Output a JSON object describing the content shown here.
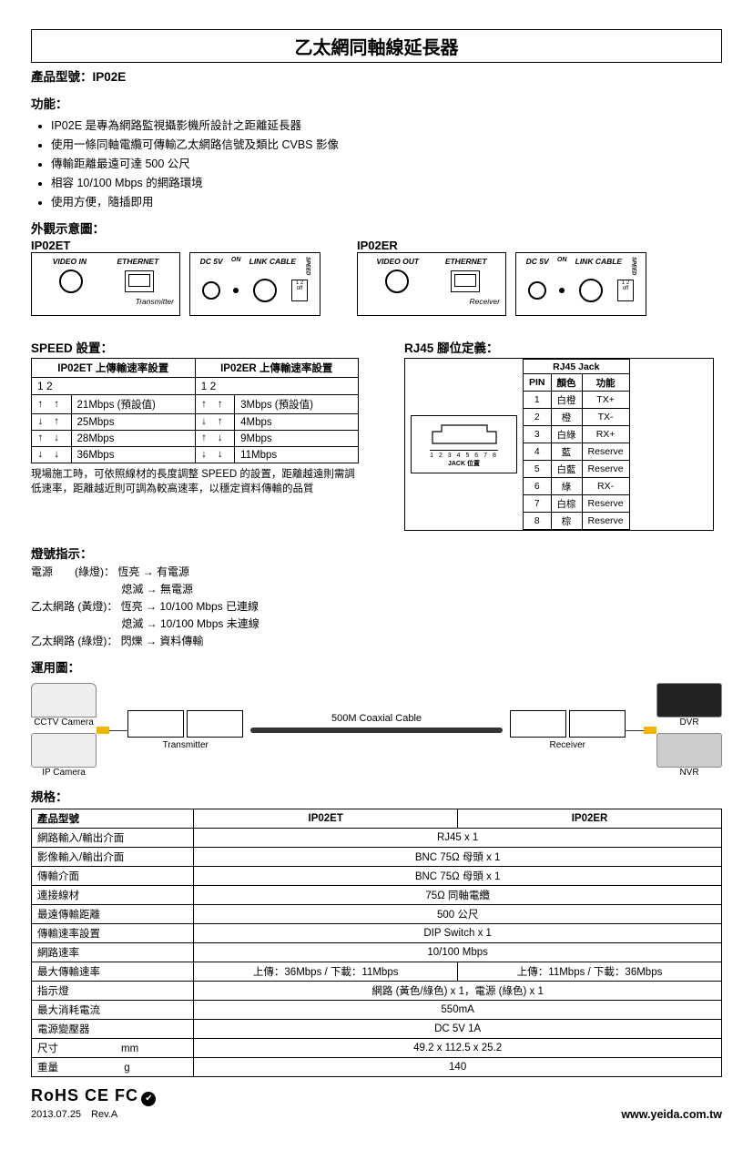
{
  "title": "乙太網同軸線延長器",
  "model_label": "產品型號：IP02E",
  "features_head": "功能：",
  "features": [
    "IP02E 是專為網路監視攝影機所設計之距離延長器",
    "使用一條同軸電纜可傳輸乙太網路信號及類比 CVBS 影像",
    "傳輸距離最遠可達 500 公尺",
    "相容 10/100 Mbps 的網路環境",
    "使用方便，隨插即用"
  ],
  "appearance_head": "外觀示意圖：",
  "diagrams": {
    "tx_name": "IP02ET",
    "rx_name": "IP02ER",
    "tx_video_label": "VIDEO IN",
    "rx_video_label": "VIDEO OUT",
    "eth_label": "ETHERNET",
    "dc_label": "DC 5V",
    "on_label": "ON",
    "link_label": "LINK CABLE",
    "speed_label": "SPEED",
    "dip_labels": "1 2\noff",
    "tx_footer": "Transmitter",
    "rx_footer": "Receiver"
  },
  "speed_head": "SPEED 設置：",
  "speed_table": {
    "h1": "IP02ET 上傳輸速率設置",
    "h2": "IP02ER 上傳輸速率設置",
    "dip_header": "1 2",
    "rows": [
      {
        "s1": "↑ ↑",
        "v1": "21Mbps (預設值)",
        "s2": "↑ ↑",
        "v2": "3Mbps (預設值)"
      },
      {
        "s1": "↓ ↑",
        "v1": "25Mbps",
        "s2": "↓ ↑",
        "v2": "4Mbps"
      },
      {
        "s1": "↑ ↓",
        "v1": "28Mbps",
        "s2": "↑ ↓",
        "v2": "9Mbps"
      },
      {
        "s1": "↓ ↓",
        "v1": "36Mbps",
        "s2": "↓ ↓",
        "v2": "11Mbps"
      }
    ],
    "note": "現場施工時，可依照線材的長度調整 SPEED 的設置，距離越遠則需調低速率，距離越近則可調為較高速率，以穩定資料傳輸的品質"
  },
  "rj45_head": "RJ45 腳位定義：",
  "rj45_jack_title": "RJ45 Jack",
  "rj45_jack_label": "JACK 位置",
  "rj45_pins_num": "1 2 3 4 5 6 7 8",
  "rj45_table": {
    "headers": [
      "PIN",
      "顏色",
      "功能"
    ],
    "rows": [
      [
        "1",
        "白橙",
        "TX+"
      ],
      [
        "2",
        "橙",
        "TX-"
      ],
      [
        "3",
        "白綠",
        "RX+"
      ],
      [
        "4",
        "藍",
        "Reserve"
      ],
      [
        "5",
        "白藍",
        "Reserve"
      ],
      [
        "6",
        "綠",
        "RX-"
      ],
      [
        "7",
        "白棕",
        "Reserve"
      ],
      [
        "8",
        "棕",
        "Reserve"
      ]
    ]
  },
  "led_head": "燈號指示：",
  "led_lines": [
    "電源　　(綠燈)： 恆亮 → 有電源",
    "　　　　　　　　 熄滅 → 無電源",
    "乙太網路 (黃燈)： 恆亮 → 10/100 Mbps 已連線",
    "　　　　　　　　 熄滅 → 10/100 Mbps 未連線",
    "乙太網路 (綠燈)： 閃爍 → 資料傳輸"
  ],
  "app_head": "運用圖：",
  "app": {
    "cctv": "CCTV Camera",
    "ipcam": "IP Camera",
    "tx": "Transmitter",
    "rx": "Receiver",
    "cable": "500M Coaxial Cable",
    "dvr": "DVR",
    "nvr": "NVR"
  },
  "spec_head": "規格：",
  "spec": {
    "head1": "產品型號",
    "head2": "IP02ET",
    "head3": "IP02ER",
    "rows": [
      {
        "k": "網路輸入/輸出介面",
        "v": "RJ45 x 1",
        "span": 2
      },
      {
        "k": "影像輸入/輸出介面",
        "v": "BNC 75Ω 母頭 x 1",
        "span": 2
      },
      {
        "k": "傳輸介面",
        "v": "BNC 75Ω 母頭 x 1",
        "span": 2
      },
      {
        "k": "連接線材",
        "v": "75Ω 同軸電纜",
        "span": 2
      },
      {
        "k": "最遠傳輸距離",
        "v": "500 公尺",
        "span": 2
      },
      {
        "k": "傳輸速率設置",
        "v": "DIP Switch x 1",
        "span": 2
      },
      {
        "k": "網路速率",
        "v": "10/100 Mbps",
        "span": 2
      },
      {
        "k": "最大傳輸速率",
        "v1": "上傳：36Mbps / 下載：11Mbps",
        "v2": "上傳：11Mbps / 下載：36Mbps"
      },
      {
        "k": "指示燈",
        "v": "網路 (黃色/綠色) x 1，電源 (綠色) x 1",
        "span": 2
      },
      {
        "k": "最大消耗電流",
        "v": "550mA",
        "span": 2
      },
      {
        "k": "電源變壓器",
        "v": "DC 5V 1A",
        "span": 2
      },
      {
        "k": "尺寸　　　　　　mm",
        "v": "49.2 x 112.5 x 25.2",
        "span": 2
      },
      {
        "k": "重量　　　　　　 g",
        "v": "140",
        "span": 2
      }
    ]
  },
  "footer": {
    "cert": "RoHS CE FC",
    "rev": "2013.07.25　Rev.A",
    "url": "www.yeida.com.tw"
  }
}
